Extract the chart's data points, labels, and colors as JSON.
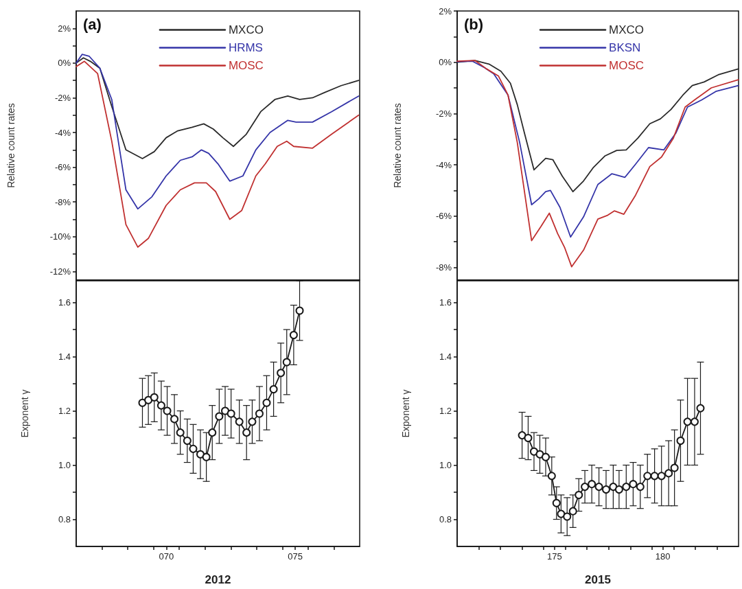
{
  "chart_data": [
    {
      "type": "line",
      "ylabel": "Relative count rates",
      "annotations": [
        "(a)"
      ],
      "legend": "top",
      "marker": "none",
      "tick_labels": "y",
      "xlim": [
        67,
        78
      ],
      "xticks": [
        {
          "value": 68,
          "label": null
        },
        {
          "value": 69,
          "label": null
        },
        {
          "value": 70,
          "label": null
        },
        {
          "value": 71,
          "label": null
        },
        {
          "value": 72,
          "label": null
        },
        {
          "value": 73,
          "label": null
        },
        {
          "value": 74,
          "label": null
        },
        {
          "value": 75,
          "label": null
        },
        {
          "value": 76,
          "label": null
        },
        {
          "value": 77,
          "label": null
        }
      ],
      "ylim": [
        -12.5,
        3
      ],
      "yticks": [
        {
          "value": -12,
          "label": "-12%"
        },
        {
          "value": -11,
          "label": null
        },
        {
          "value": -10,
          "label": "-10%"
        },
        {
          "value": -9,
          "label": null
        },
        {
          "value": -8,
          "label": "-8%"
        },
        {
          "value": -7,
          "label": null
        },
        {
          "value": -6,
          "label": "-6%"
        },
        {
          "value": -5,
          "label": null
        },
        {
          "value": -4,
          "label": "-4%"
        },
        {
          "value": -3,
          "label": null
        },
        {
          "value": -2,
          "label": "-2%"
        },
        {
          "value": -1,
          "label": null
        },
        {
          "value": 0,
          "label": "0%"
        },
        {
          "value": 1,
          "label": null
        },
        {
          "value": 2,
          "label": "2%"
        }
      ],
      "series": [
        {
          "name": "MXCO",
          "color": "#2a2a2a",
          "x": [
            67,
            67.28,
            67.55,
            67.92,
            68.38,
            68.93,
            69.57,
            70.03,
            70.49,
            70.94,
            71.5,
            71.95,
            72.32,
            72.69,
            73.1,
            73.6,
            74.16,
            74.71,
            75.21,
            75.67,
            76.17,
            76.63,
            77.28,
            77.96
          ],
          "values": [
            0,
            0.3,
            0.1,
            -0.3,
            -2.5,
            -5,
            -5.5,
            -5.1,
            -4.3,
            -3.9,
            -3.7,
            -3.5,
            -3.8,
            -4.3,
            -4.8,
            -4.1,
            -2.8,
            -2.1,
            -1.9,
            -2.1,
            -2,
            -1.7,
            -1.3,
            -1
          ]
        },
        {
          "name": "HRMS",
          "color": "#3434a8",
          "x": [
            67,
            67.23,
            67.5,
            67.92,
            68.38,
            68.93,
            69.39,
            69.94,
            70.49,
            71.04,
            71.5,
            71.86,
            72.14,
            72.5,
            72.96,
            73.47,
            73.97,
            74.52,
            75.21,
            75.53,
            76.17,
            76.91,
            77.96
          ],
          "values": [
            0,
            0.5,
            0.4,
            -0.3,
            -2.1,
            -7.3,
            -8.4,
            -7.7,
            -6.5,
            -5.6,
            -5.4,
            -5,
            -5.2,
            -5.8,
            -6.8,
            -6.5,
            -5,
            -4,
            -3.3,
            -3.4,
            -3.4,
            -2.8,
            -1.9
          ]
        },
        {
          "name": "MOSC",
          "color": "#c03030",
          "x": [
            67,
            67.32,
            67.83,
            68.38,
            68.93,
            69.39,
            69.8,
            70.49,
            71.04,
            71.59,
            72.05,
            72.41,
            72.96,
            73.42,
            73.97,
            74.34,
            74.8,
            75.17,
            75.44,
            76.17,
            76.91,
            77.96
          ],
          "values": [
            -0.2,
            0.1,
            -0.6,
            -4.5,
            -9.3,
            -10.6,
            -10.1,
            -8.2,
            -7.3,
            -6.9,
            -6.9,
            -7.4,
            -9,
            -8.5,
            -6.5,
            -5.8,
            -4.8,
            -4.5,
            -4.8,
            -4.9,
            -4.1,
            -3
          ]
        }
      ]
    },
    {
      "type": "line",
      "ylabel": "Relative count rates",
      "annotations": [
        "(b)"
      ],
      "legend": "top",
      "marker": "none",
      "tick_labels": "y",
      "xlim": [
        171,
        184
      ],
      "xticks": [
        {
          "value": 172,
          "label": null
        },
        {
          "value": 173,
          "label": null
        },
        {
          "value": 174,
          "label": null
        },
        {
          "value": 175,
          "label": null
        },
        {
          "value": 176,
          "label": null
        },
        {
          "value": 177,
          "label": null
        },
        {
          "value": 178,
          "label": null
        },
        {
          "value": 179,
          "label": null
        },
        {
          "value": 180,
          "label": null
        },
        {
          "value": 181,
          "label": null
        },
        {
          "value": 182,
          "label": null
        },
        {
          "value": 183,
          "label": null
        }
      ],
      "ylim": [
        -8.5,
        2
      ],
      "yticks": [
        {
          "value": -8,
          "label": "-8%"
        },
        {
          "value": -7,
          "label": null
        },
        {
          "value": -6,
          "label": "-6%"
        },
        {
          "value": -5,
          "label": null
        },
        {
          "value": -4,
          "label": "-4%"
        },
        {
          "value": -3,
          "label": null
        },
        {
          "value": -2,
          "label": "-2%"
        },
        {
          "value": -1,
          "label": null
        },
        {
          "value": 0,
          "label": "0%"
        },
        {
          "value": 1,
          "label": null
        },
        {
          "value": 2,
          "label": "2%"
        }
      ],
      "series": [
        {
          "name": "MXCO",
          "color": "#2a2a2a",
          "x": [
            171,
            171.82,
            172.47,
            173.02,
            173.46,
            173.78,
            174.11,
            174.55,
            175.09,
            175.42,
            175.86,
            176.35,
            176.84,
            177.28,
            177.82,
            178.37,
            178.81,
            179.35,
            179.9,
            180.39,
            180.88,
            181.43,
            181.86,
            182.41,
            183.06,
            183.99
          ],
          "values": [
            0,
            0.07,
            -0.07,
            -0.35,
            -0.82,
            -1.66,
            -2.77,
            -4.2,
            -3.75,
            -3.8,
            -4.45,
            -5.05,
            -4.63,
            -4.12,
            -3.66,
            -3.44,
            -3.42,
            -2.96,
            -2.4,
            -2.21,
            -1.84,
            -1.28,
            -0.91,
            -0.77,
            -0.49,
            -0.26
          ]
        },
        {
          "name": "BKSN",
          "color": "#3434a8",
          "x": [
            171,
            171.71,
            172.26,
            172.69,
            173.35,
            173.89,
            174.44,
            174.77,
            175.09,
            175.31,
            175.75,
            176.24,
            176.84,
            177.5,
            178.15,
            178.75,
            179.24,
            179.84,
            180.55,
            181.1,
            181.64,
            182.3,
            182.95,
            183.99
          ],
          "values": [
            0.02,
            0.04,
            -0.21,
            -0.45,
            -1.28,
            -3.14,
            -5.56,
            -5.33,
            -5.05,
            -5,
            -5.66,
            -6.82,
            -6.03,
            -4.77,
            -4.35,
            -4.49,
            -3.98,
            -3.33,
            -3.42,
            -2.77,
            -1.75,
            -1.47,
            -1.14,
            -0.91
          ]
        },
        {
          "name": "MOSC",
          "color": "#c03030",
          "x": [
            171,
            171.82,
            172.36,
            172.91,
            173.35,
            173.78,
            174.44,
            174.88,
            175.26,
            175.64,
            175.97,
            176.29,
            176.84,
            177.5,
            177.93,
            178.26,
            178.7,
            179.24,
            179.9,
            180.44,
            180.99,
            181.53,
            181.97,
            182.74,
            183.99
          ],
          "values": [
            0.04,
            0.07,
            -0.26,
            -0.54,
            -1.28,
            -3.14,
            -6.96,
            -6.4,
            -5.89,
            -6.68,
            -7.24,
            -7.98,
            -7.33,
            -6.12,
            -5.98,
            -5.8,
            -5.93,
            -5.19,
            -4.07,
            -3.7,
            -2.96,
            -1.75,
            -1.47,
            -1,
            -0.68
          ]
        }
      ]
    },
    {
      "type": "line",
      "xlabel": "2012",
      "ylabel": "Exponent γ",
      "marker": "circle",
      "xlim": [
        67,
        78
      ],
      "xticks": [
        {
          "value": 68,
          "label": null
        },
        {
          "value": 69,
          "label": null
        },
        {
          "value": 70,
          "label": null
        },
        {
          "value": 70.5,
          "label": "070"
        },
        {
          "value": 71,
          "label": null
        },
        {
          "value": 72,
          "label": null
        },
        {
          "value": 73,
          "label": null
        },
        {
          "value": 74,
          "label": null
        },
        {
          "value": 75,
          "label": null
        },
        {
          "value": 75.5,
          "label": "075"
        },
        {
          "value": 76,
          "label": null
        },
        {
          "value": 77,
          "label": null
        }
      ],
      "ylim": [
        0.7,
        1.68
      ],
      "yticks": [
        {
          "value": 0.8,
          "label": "0.8"
        },
        {
          "value": 0.9,
          "label": null
        },
        {
          "value": 1,
          "label": "1.0"
        },
        {
          "value": 1.1,
          "label": null
        },
        {
          "value": 1.2,
          "label": "1.2"
        },
        {
          "value": 1.3,
          "label": null
        },
        {
          "value": 1.4,
          "label": "1.4"
        },
        {
          "value": 1.5,
          "label": null
        },
        {
          "value": 1.6,
          "label": "1.6"
        }
      ],
      "series": [
        {
          "color": "#1a1a1a",
          "x": [
            69.57,
            69.8,
            70.03,
            70.3,
            70.53,
            70.81,
            71.04,
            71.31,
            71.54,
            71.82,
            72.05,
            72.28,
            72.55,
            72.78,
            73.01,
            73.33,
            73.61,
            73.83,
            74.11,
            74.39,
            74.66,
            74.94,
            75.17,
            75.44,
            75.67
          ],
          "values": [
            1.23,
            1.24,
            1.25,
            1.22,
            1.2,
            1.17,
            1.12,
            1.09,
            1.06,
            1.04,
            1.03,
            1.12,
            1.18,
            1.2,
            1.19,
            1.16,
            1.12,
            1.16,
            1.19,
            1.23,
            1.28,
            1.34,
            1.38,
            1.48,
            1.57
          ],
          "errors": [
            0.09,
            0.09,
            0.09,
            0.09,
            0.09,
            0.09,
            0.08,
            0.08,
            0.09,
            0.09,
            0.09,
            0.1,
            0.1,
            0.09,
            0.09,
            0.08,
            0.1,
            0.08,
            0.1,
            0.1,
            0.1,
            0.11,
            0.12,
            0.11,
            0.11
          ]
        }
      ]
    },
    {
      "type": "line",
      "xlabel": "2015",
      "ylabel": "Exponent γ",
      "marker": "circle",
      "xlim": [
        171,
        184
      ],
      "xticks": [
        {
          "value": 172,
          "label": null
        },
        {
          "value": 173,
          "label": null
        },
        {
          "value": 174,
          "label": null
        },
        {
          "value": 175,
          "label": null
        },
        {
          "value": 175.5,
          "label": "175"
        },
        {
          "value": 176,
          "label": null
        },
        {
          "value": 177,
          "label": null
        },
        {
          "value": 178,
          "label": null
        },
        {
          "value": 179,
          "label": null
        },
        {
          "value": 180,
          "label": null
        },
        {
          "value": 180.5,
          "label": "180"
        },
        {
          "value": 181,
          "label": null
        },
        {
          "value": 182,
          "label": null
        },
        {
          "value": 183,
          "label": null
        }
      ],
      "ylim": [
        0.7,
        1.68
      ],
      "yticks": [
        {
          "value": 0.8,
          "label": "0.8"
        },
        {
          "value": 0.9,
          "label": null
        },
        {
          "value": 1,
          "label": "1.0"
        },
        {
          "value": 1.1,
          "label": null
        },
        {
          "value": 1.2,
          "label": "1.2"
        },
        {
          "value": 1.3,
          "label": null
        },
        {
          "value": 1.4,
          "label": "1.4"
        },
        {
          "value": 1.5,
          "label": null
        },
        {
          "value": 1.6,
          "label": "1.6"
        }
      ],
      "series": [
        {
          "color": "#1a1a1a",
          "x": [
            174,
            174.28,
            174.55,
            174.82,
            175.09,
            175.37,
            175.59,
            175.8,
            176.08,
            176.35,
            176.62,
            176.9,
            177.22,
            177.55,
            177.88,
            178.21,
            178.48,
            178.81,
            179.13,
            179.46,
            179.79,
            180.12,
            180.44,
            180.77,
            181.04,
            181.32,
            181.64,
            181.97,
            182.24
          ],
          "values": [
            1.11,
            1.1,
            1.05,
            1.04,
            1.03,
            0.96,
            0.86,
            0.82,
            0.81,
            0.83,
            0.89,
            0.92,
            0.93,
            0.92,
            0.91,
            0.92,
            0.91,
            0.92,
            0.93,
            0.92,
            0.96,
            0.96,
            0.96,
            0.97,
            0.99,
            1.09,
            1.16,
            1.16,
            1.21
          ],
          "errors": [
            0.085,
            0.08,
            0.07,
            0.07,
            0.07,
            0.07,
            0.06,
            0.07,
            0.07,
            0.06,
            0.06,
            0.06,
            0.07,
            0.07,
            0.07,
            0.08,
            0.07,
            0.08,
            0.08,
            0.08,
            0.08,
            0.1,
            0.11,
            0.12,
            0.14,
            0.15,
            0.16,
            0.16,
            0.17
          ]
        }
      ]
    }
  ]
}
